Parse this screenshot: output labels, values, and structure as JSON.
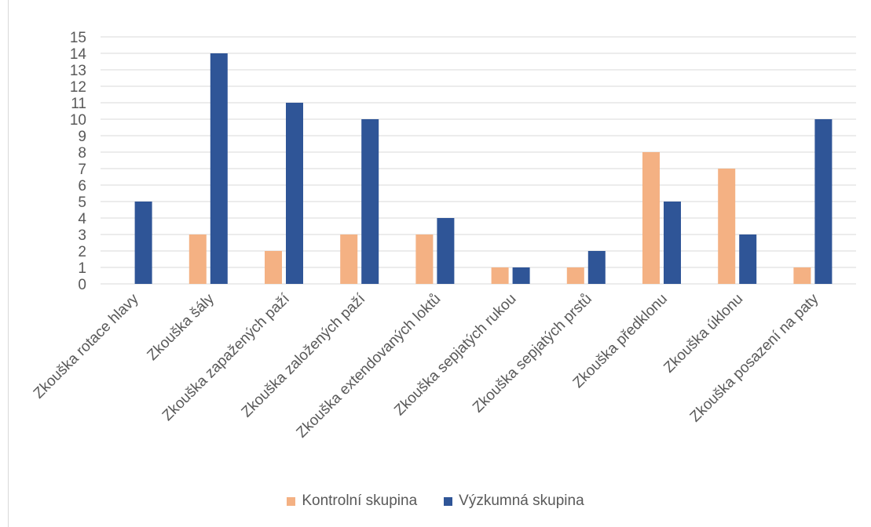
{
  "chart_data": {
    "type": "bar",
    "categories": [
      "Zkouška rotace hlavy",
      "Zkouška šály",
      "Zkouška zapažených paží",
      "Zkouška založených paží",
      "Zkouška extendovaných loktů",
      "Zkouška sepjatých rukou",
      "Zkouška sepjatých prstů",
      "Zkouška předklonu",
      "Zkouška úklonu",
      "Zkouška posazení na paty"
    ],
    "series": [
      {
        "name": "Kontrolní skupina",
        "color": "#f4b183",
        "values": [
          0,
          3,
          2,
          3,
          3,
          1,
          1,
          8,
          7,
          1
        ]
      },
      {
        "name": "Výzkumná skupina",
        "color": "#2f5597",
        "values": [
          5,
          14,
          11,
          10,
          4,
          1,
          2,
          5,
          3,
          10
        ]
      }
    ],
    "ylim": [
      0,
      15
    ],
    "yticks": [
      "0",
      "1",
      "2",
      "3",
      "4",
      "5",
      "6",
      "7",
      "8",
      "9",
      "10",
      "11",
      "12",
      "13",
      "14",
      "15"
    ],
    "grid": true,
    "legend_position": "bottom"
  }
}
